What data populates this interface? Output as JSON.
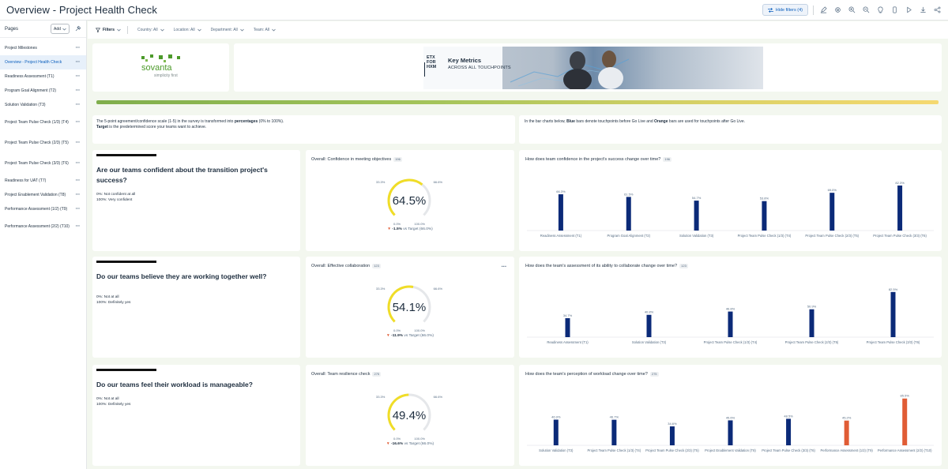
{
  "header": {
    "title": "Overview - Project Health Check",
    "hide_filters": "Hide filters (4)"
  },
  "toolbar_icons": [
    "edit-icon",
    "settings-icon",
    "zoom-in-icon",
    "zoom-out-icon",
    "bulb-icon",
    "mobile-icon",
    "play-icon",
    "download-icon",
    "share-icon"
  ],
  "sidebar": {
    "heading": "Pages",
    "add_label": "Add",
    "items": [
      {
        "label": "Project Milestones",
        "active": false
      },
      {
        "label": "Overview - Project Health Check",
        "active": true
      },
      {
        "label": "Readiness Assessment (T1)",
        "active": false
      },
      {
        "label": "Program Goal Alignment (T2)",
        "active": false
      },
      {
        "label": "Solution Validation (T3)",
        "active": false
      },
      {
        "label": "Project Team Pulse Check (1/3) (T4)",
        "active": false
      },
      {
        "label": "Project Team Pulse Check (2/3) (T5)",
        "active": false
      },
      {
        "label": "Project Team Pulse Check (3/3) (T6)",
        "active": false
      },
      {
        "label": "Readiness for UAT (T7)",
        "active": false
      },
      {
        "label": "Project Enablement Validation (T8)",
        "active": false
      },
      {
        "label": "Performance Assessment (1/2) (T9)",
        "active": false
      },
      {
        "label": "Performance Assessment (2/2) (T10)",
        "active": false
      }
    ]
  },
  "filters": {
    "label": "Filters",
    "chips": [
      "Country: All",
      "Location: All",
      "Department: All",
      "Team: All"
    ]
  },
  "logo": {
    "name": "sovanta",
    "tagline": "simplicity first"
  },
  "banner": {
    "tag_lines": [
      "ETX",
      "FOR",
      "HXM"
    ],
    "heading": "Key Metrics",
    "subheading": "ACROSS ALL TOUCHPOINTS"
  },
  "note_left": {
    "line1_a": "The 5-point agreement/confidence scale (1-5) in the survey is transformed into ",
    "line1_b": "percentages",
    "line1_c": " (0% to 100%).",
    "line2_a": "Target",
    "line2_b": " is the predetermined score your teams want to achieve."
  },
  "note_right": {
    "a": "In the bar charts below, ",
    "b": "Blue",
    "c": " bars denote touchpoints before Go Live and ",
    "d": "Orange",
    "e": " bars are used for touchpoints after Go Live."
  },
  "colors": {
    "before": "#0b2a78",
    "after": "#e05c35",
    "gauge": "#f0dd27",
    "gauge_track": "#e5e7ea"
  },
  "rows": [
    {
      "question": "Are our teams confident about the transition project's success?",
      "scale_low": "0%: Not confident at all",
      "scale_high": "100%: Very confident",
      "gauge": {
        "title": "Overall: Confidence in meeting objectives",
        "count": "196",
        "value": 64.5,
        "value_label": "64.5%",
        "ticks": {
          "left": "33.3%",
          "right": "66.6%",
          "bottom_left": "0.0%",
          "bottom_right": "100.0%"
        },
        "delta": "-1.5%",
        "delta_suffix": "vs Target (66.0%)"
      },
      "chart": {
        "title": "How does team confidence in the project's success change over time?",
        "count": "196",
        "type": "bar",
        "categories": [
          "Readiness Assessment (T1)",
          "Program Goal Alignment (T2)",
          "Solution Validation (T3)",
          "Project Team Pulse Check (1/3) (T4)",
          "Project Team Pulse Check (2/3) (T5)",
          "Project Team Pulse Check (3/3) (T6)"
        ],
        "values": [
          66.3,
          61.5,
          54.7,
          53.8,
          69.0,
          82.3
        ],
        "value_labels": [
          "66.3%",
          "61.5%",
          "54.7%",
          "53.8%",
          "69.0%",
          "82.3%"
        ],
        "phase": [
          "before",
          "before",
          "before",
          "before",
          "before",
          "before"
        ],
        "ylim": [
          0,
          100
        ]
      }
    },
    {
      "question": "Do our teams believe they are working together well?",
      "scale_low": "0%: Not at all",
      "scale_high": "100%: Definitely yes",
      "gauge": {
        "title": "Overall: Effective collaboration",
        "count": "123",
        "value": 54.1,
        "value_label": "54.1%",
        "ticks": {
          "left": "33.3%",
          "right": "66.6%",
          "bottom_left": "0.0%",
          "bottom_right": "100.0%"
        },
        "delta": "-11.9%",
        "delta_suffix": "vs Target (66.0%)"
      },
      "chart": {
        "title": "How does the team's assessment of its ability to collaborate change over time?",
        "count": "123",
        "type": "bar",
        "categories": [
          "Readiness Assessment (T1)",
          "Solution Validation (T3)",
          "Project Team Pulse Check (1/3) (T4)",
          "Project Team Pulse Check (2/3) (T5)",
          "Project Team Pulse Check (3/3) (T6)"
        ],
        "values": [
          34.7,
          40.8,
          46.8,
          50.9,
          82.5
        ],
        "value_labels": [
          "34.7%",
          "40.8%",
          "46.8%",
          "50.9%",
          "82.5%"
        ],
        "phase": [
          "before",
          "before",
          "before",
          "before",
          "before"
        ],
        "ylim": [
          0,
          100
        ]
      }
    },
    {
      "question": "Do our teams feel their workload is manageable?",
      "scale_low": "0%: Not at all",
      "scale_high": "100%: Definitely yes",
      "gauge": {
        "title": "Overall: Team resilience check",
        "count": "275",
        "value": 49.4,
        "value_label": "49.4%",
        "ticks": {
          "left": "33.3%",
          "right": "66.6%",
          "bottom_left": "0.0%",
          "bottom_right": "100.0%"
        },
        "delta": "-16.6%",
        "delta_suffix": "vs Target (66.0%)"
      },
      "chart": {
        "title": "How does the team's perception of workload change over time?",
        "count": "275",
        "type": "bar",
        "categories": [
          "Solution Validation (T3)",
          "Project Team Pulse Check (1/3) (T4)",
          "Project Team Pulse Check (2/3) (T5)",
          "Project Enablement Validation (T8)",
          "Project Team Pulse Check (3/3) (T6)",
          "Performance Assessment (1/2) (T9)",
          "Performance Assessment (2/2) (T10)"
        ],
        "values": [
          46.9,
          46.7,
          34.6,
          45.6,
          48.5,
          45.2,
          85.5
        ],
        "value_labels": [
          "46.9%",
          "46.7%",
          "34.6%",
          "45.6%",
          "48.5%",
          "45.2%",
          "85.5%"
        ],
        "phase": [
          "before",
          "before",
          "before",
          "before",
          "before",
          "after",
          "after"
        ],
        "ylim": [
          0,
          100
        ]
      }
    }
  ],
  "chart_data": [
    {
      "type": "bar",
      "title": "How does team confidence in the project's success change over time?",
      "categories": [
        "Readiness Assessment (T1)",
        "Program Goal Alignment (T2)",
        "Solution Validation (T3)",
        "Project Team Pulse Check (1/3) (T4)",
        "Project Team Pulse Check (2/3) (T5)",
        "Project Team Pulse Check (3/3) (T6)"
      ],
      "values": [
        66.3,
        61.5,
        54.7,
        53.8,
        69.0,
        82.3
      ]
    },
    {
      "type": "bar",
      "title": "How does the team's assessment of its ability to collaborate change over time?",
      "categories": [
        "Readiness Assessment (T1)",
        "Solution Validation (T3)",
        "Project Team Pulse Check (1/3) (T4)",
        "Project Team Pulse Check (2/3) (T5)",
        "Project Team Pulse Check (3/3) (T6)"
      ],
      "values": [
        34.7,
        40.8,
        46.8,
        50.9,
        82.5
      ]
    },
    {
      "type": "bar",
      "title": "How does the team's perception of workload change over time?",
      "categories": [
        "Solution Validation (T3)",
        "Project Team Pulse Check (1/3) (T4)",
        "Project Team Pulse Check (2/3) (T5)",
        "Project Enablement Validation (T8)",
        "Project Team Pulse Check (3/3) (T6)",
        "Performance Assessment (1/2) (T9)",
        "Performance Assessment (2/2) (T10)"
      ],
      "values": [
        46.9,
        46.7,
        34.6,
        45.6,
        48.5,
        45.2,
        85.5
      ]
    }
  ]
}
